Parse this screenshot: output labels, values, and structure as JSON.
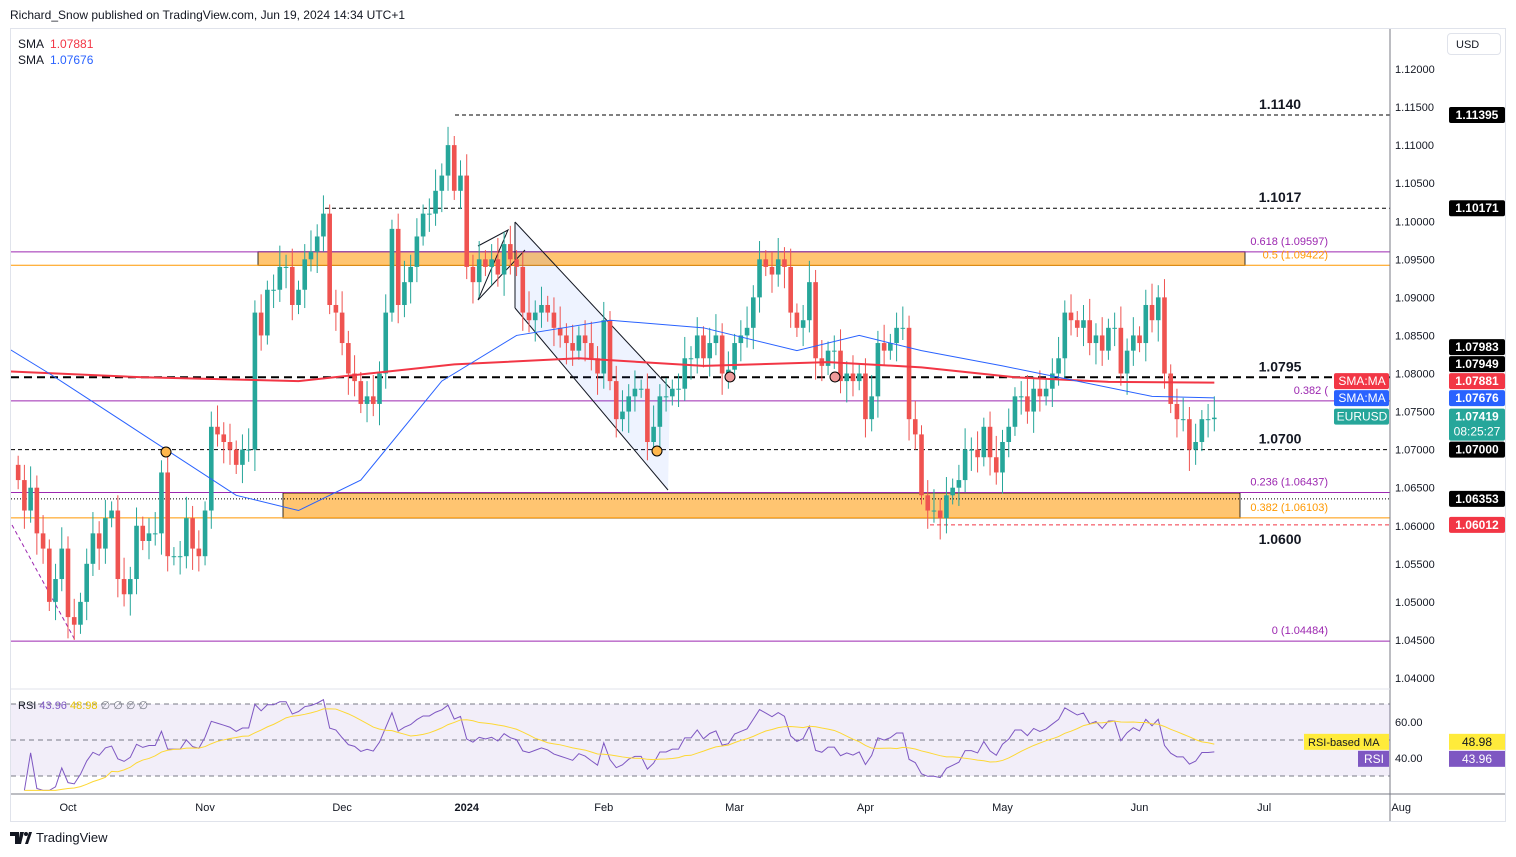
{
  "header": {
    "text": "Richard_Snow published on TradingView.com, Jun 19, 2024 14:34 UTC+1"
  },
  "legend": {
    "sma1_label": "SMA",
    "sma1_value": "1.07881",
    "sma2_label": "SMA",
    "sma2_value": "1.07676"
  },
  "currency_button": "USD",
  "footer": {
    "brand": "TradingView"
  },
  "colors": {
    "up": "#26a69a",
    "down": "#ef5350",
    "sma_long": "#f23645",
    "sma_short": "#2962ff",
    "rsi": "#7e57c2",
    "rsi_ma": "#fdd835",
    "fib": "#9c27b0",
    "zone": "#ffb74d"
  },
  "chart_data": {
    "type": "candlestick",
    "symbol": "EURUSD",
    "ylim": [
      1.037,
      1.125
    ],
    "y_ticks": [
      "1.12000",
      "1.11500",
      "1.11000",
      "1.10500",
      "1.10000",
      "1.09500",
      "1.09000",
      "1.08500",
      "1.08000",
      "1.07500",
      "1.07000",
      "1.06500",
      "1.06000",
      "1.05500",
      "1.05000",
      "1.04500",
      "1.04000"
    ],
    "x_ticks": [
      {
        "label": "Oct",
        "bar": 8
      },
      {
        "label": "Nov",
        "bar": 30
      },
      {
        "label": "Dec",
        "bar": 52
      },
      {
        "label": "2024",
        "bar": 72
      },
      {
        "label": "Feb",
        "bar": 94
      },
      {
        "label": "Mar",
        "bar": 115
      },
      {
        "label": "Apr",
        "bar": 136
      },
      {
        "label": "May",
        "bar": 158
      },
      {
        "label": "Jun",
        "bar": 180
      },
      {
        "label": "Jul",
        "bar": 200
      },
      {
        "label": "Aug",
        "bar": 222
      }
    ],
    "closes": [
      1.066,
      1.062,
      1.065,
      1.059,
      1.057,
      1.05,
      1.053,
      1.057,
      1.048,
      1.047,
      1.05,
      1.055,
      1.059,
      1.057,
      1.061,
      1.062,
      1.053,
      1.051,
      1.053,
      1.06,
      1.058,
      1.059,
      1.059,
      1.067,
      1.056,
      1.056,
      1.056,
      1.061,
      1.057,
      1.056,
      1.062,
      1.073,
      1.072,
      1.071,
      1.07,
      1.068,
      1.07,
      1.07,
      1.088,
      1.085,
      1.091,
      1.091,
      1.094,
      1.094,
      1.089,
      1.091,
      1.095,
      1.096,
      1.098,
      1.101,
      1.089,
      1.088,
      1.084,
      1.08,
      1.079,
      1.076,
      1.077,
      1.076,
      1.08,
      1.088,
      1.099,
      1.089,
      1.092,
      1.094,
      1.098,
      1.101,
      1.101,
      1.104,
      1.106,
      1.11,
      1.104,
      1.106,
      1.094,
      1.092,
      1.095,
      1.094,
      1.095,
      1.093,
      1.097,
      1.095,
      1.094,
      1.088,
      1.087,
      1.088,
      1.089,
      1.088,
      1.086,
      1.085,
      1.084,
      1.083,
      1.085,
      1.084,
      1.082,
      1.08,
      1.087,
      1.079,
      1.074,
      1.075,
      1.077,
      1.078,
      1.078,
      1.071,
      1.073,
      1.077,
      1.077,
      1.078,
      1.078,
      1.082,
      1.082,
      1.085,
      1.082,
      1.084,
      1.085,
      1.08,
      1.0805,
      1.084,
      1.085,
      1.086,
      1.09,
      1.095,
      1.094,
      1.093,
      1.095,
      1.094,
      1.088,
      1.086,
      1.087,
      1.092,
      1.082,
      1.081,
      1.083,
      1.083,
      1.079,
      1.08,
      1.079,
      1.08,
      1.074,
      1.077,
      1.084,
      1.083,
      1.084,
      1.086,
      1.086,
      1.074,
      1.072,
      1.064,
      1.062,
      1.062,
      1.061,
      1.064,
      1.065,
      1.066,
      1.07,
      1.07,
      1.069,
      1.073,
      1.069,
      1.067,
      1.071,
      1.073,
      1.077,
      1.077,
      1.075,
      1.078,
      1.077,
      1.078,
      1.08,
      1.082,
      1.088,
      1.087,
      1.086,
      1.087,
      1.084,
      1.085,
      1.083,
      1.086,
      1.086,
      1.08,
      1.083,
      1.085,
      1.084,
      1.089,
      1.087,
      1.09,
      1.08,
      1.076,
      1.074,
      1.074,
      1.07,
      1.071,
      1.074,
      1.074,
      1.0742
    ],
    "sma_long": [
      [
        -8,
        1.0805
      ],
      [
        20,
        1.0795
      ],
      [
        45,
        1.079
      ],
      [
        70,
        1.0812
      ],
      [
        90,
        1.082
      ],
      [
        110,
        1.081
      ],
      [
        130,
        1.0815
      ],
      [
        145,
        1.0808
      ],
      [
        160,
        1.0795
      ],
      [
        175,
        1.0789
      ],
      [
        192,
        1.0788
      ]
    ],
    "sma_short": [
      [
        -9,
        1.087
      ],
      [
        5,
        1.08
      ],
      [
        20,
        1.072
      ],
      [
        35,
        1.064
      ],
      [
        45,
        1.062
      ],
      [
        55,
        1.066
      ],
      [
        68,
        1.079
      ],
      [
        80,
        1.085
      ],
      [
        95,
        1.087
      ],
      [
        110,
        1.086
      ],
      [
        125,
        1.083
      ],
      [
        135,
        1.085
      ],
      [
        145,
        1.083
      ],
      [
        158,
        1.081
      ],
      [
        170,
        1.079
      ],
      [
        182,
        1.077
      ],
      [
        192,
        1.0768
      ]
    ],
    "levels": [
      {
        "label": "1.1140",
        "price": 1.11395,
        "style": "dashed"
      },
      {
        "label": "1.1017",
        "price": 1.10171,
        "style": "dashed"
      },
      {
        "label": "1.0795",
        "price": 1.0795,
        "style": "bold-dashed"
      },
      {
        "label": "1.0700",
        "price": 1.07,
        "style": "dashed"
      },
      {
        "label": "1.0600",
        "price": 1.06012,
        "style": "dashed"
      }
    ],
    "fib": [
      {
        "label": "0.618 (1.09597)",
        "price": 1.09597,
        "color": "#9c27b0"
      },
      {
        "label": "0.5 (1.09422)",
        "price": 1.09422,
        "color": "#ff9800"
      },
      {
        "label": "0.382 (",
        "price": 1.0764,
        "color": "#9c27b0"
      },
      {
        "label": "0.236 (1.06437)",
        "price": 1.06437,
        "color": "#9c27b0"
      },
      {
        "label": "0.382 (1.06103)",
        "price": 1.06103,
        "color": "#ff9800"
      },
      {
        "label": "0 (1.04484)",
        "price": 1.04484,
        "color": "#9c27b0"
      }
    ],
    "zones": [
      {
        "top": 1.096,
        "bottom": 1.0942
      },
      {
        "top": 1.0643,
        "bottom": 1.061
      }
    ],
    "price_badges": [
      {
        "text": "1.11395",
        "price": 1.11395,
        "bg": "#000000",
        "fg": "#ffffff"
      },
      {
        "text": "1.10171",
        "price": 1.10171,
        "bg": "#000000",
        "fg": "#ffffff"
      },
      {
        "text": "1.07983",
        "price": 1.07983,
        "bg": "#000000",
        "fg": "#ffffff"
      },
      {
        "text": "1.07949",
        "price": 1.07949,
        "bg": "#000000",
        "fg": "#ffffff"
      },
      {
        "text": "1.07881",
        "price": 1.07881,
        "bg": "#f23645",
        "fg": "#ffffff",
        "tag": "SMA:MA"
      },
      {
        "text": "1.07676",
        "price": 1.07676,
        "bg": "#2962ff",
        "fg": "#ffffff",
        "tag": "SMA:MA"
      },
      {
        "text": "1.07419",
        "price": 1.07419,
        "bg": "#26a69a",
        "fg": "#ffffff",
        "tag": "EURUSD",
        "sub": "08:25:27"
      },
      {
        "text": "1.07000",
        "price": 1.07,
        "bg": "#000000",
        "fg": "#ffffff"
      },
      {
        "text": "1.06353",
        "price": 1.06353,
        "bg": "#000000",
        "fg": "#ffffff"
      },
      {
        "text": "1.06012",
        "price": 1.06012,
        "bg": "#f23645",
        "fg": "#ffffff"
      }
    ],
    "rsi": {
      "label": "RSI",
      "value": "43.96",
      "ma_value": "48.98",
      "extras": [
        "∅",
        "∅",
        "∅",
        "∅"
      ],
      "ma_label": "RSI-based MA",
      "ticks": [
        "60.00",
        "40.00"
      ],
      "bands": [
        70,
        50,
        30
      ]
    }
  }
}
